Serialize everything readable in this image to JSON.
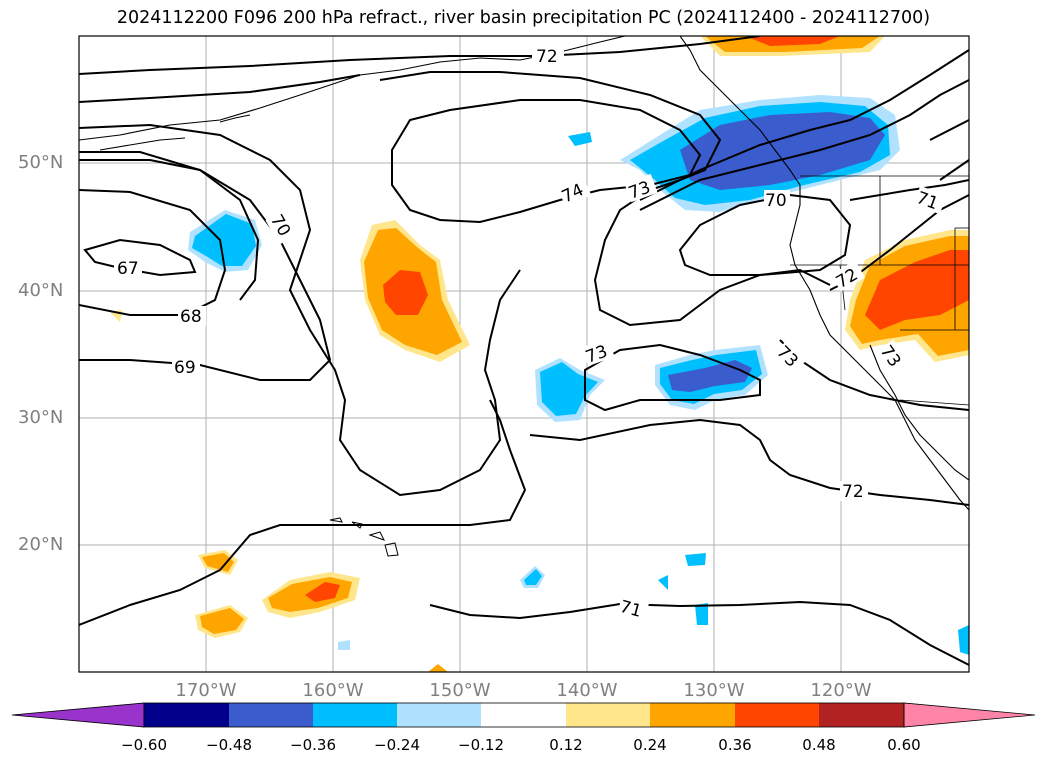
{
  "title": "2024112200 F096 200 hPa refract., river basin precipitation PC (2024112400 - 2024112700)",
  "lat_labels": [
    "50°N",
    "40°N",
    "30°N",
    "20°N"
  ],
  "lon_labels": [
    "170°W",
    "160°W",
    "150°W",
    "140°W",
    "130°W",
    "120°W"
  ],
  "colorbar": {
    "colors": [
      "#9933cc",
      "#00008b",
      "#3a5ccc",
      "#00bfff",
      "#b0e2ff",
      "#ffffff",
      "#ffe68a",
      "#ffa500",
      "#ff4500",
      "#b22222",
      "#ff85a8"
    ],
    "ticks": [
      "−0.60",
      "−0.48",
      "−0.36",
      "−0.24",
      "−0.12",
      "0.12",
      "0.24",
      "0.36",
      "0.48",
      "0.60"
    ]
  },
  "contour_labels": [
    "72",
    "74",
    "73",
    "70",
    "71",
    "67",
    "68",
    "69",
    "70",
    "72",
    "73",
    "73",
    "73",
    "72",
    "71"
  ]
}
